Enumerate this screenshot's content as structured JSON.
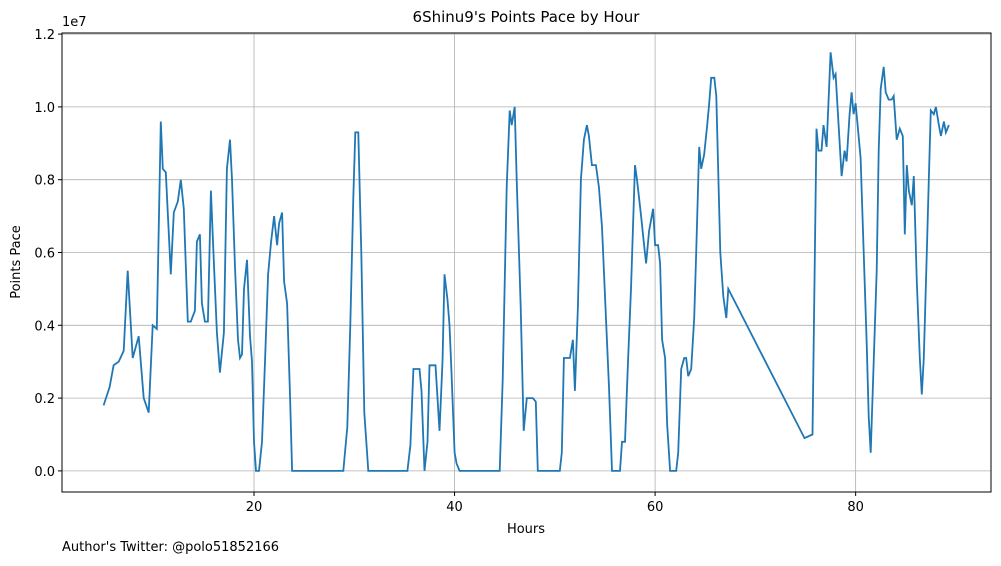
{
  "chart_data": {
    "type": "line",
    "title": "6Shinu9's Points Pace by Hour",
    "x_label": "Hours",
    "y_label": "Points Pace",
    "y_offset_label": "1e7",
    "footnote": "Author's Twitter: @polo51852166",
    "grid": true,
    "xlim": [
      0.85,
      93.5
    ],
    "ylim": [
      -0.058,
      1.203
    ],
    "xticks": [
      20,
      40,
      60,
      80
    ],
    "yticks": [
      {
        "value": 0,
        "label": "0.0"
      },
      {
        "value": 0.2,
        "label": "0.2"
      },
      {
        "value": 0.4,
        "label": "0.4"
      },
      {
        "value": 0.6,
        "label": "0.6"
      },
      {
        "value": 0.8,
        "label": "0.8"
      },
      {
        "value": 1.0,
        "label": "1.0"
      },
      {
        "value": 1.2,
        "label": "1.2"
      }
    ],
    "x": [
      5.0,
      5.6,
      6.0,
      6.5,
      7.0,
      7.4,
      7.9,
      8.5,
      9.0,
      9.5,
      9.9,
      10.3,
      10.7,
      10.9,
      11.2,
      11.7,
      12.0,
      12.4,
      12.7,
      13.0,
      13.4,
      13.7,
      14.1,
      14.3,
      14.6,
      14.8,
      15.1,
      15.4,
      15.7,
      16.0,
      16.3,
      16.6,
      17.0,
      17.3,
      17.6,
      17.8,
      18.1,
      18.4,
      18.6,
      18.8,
      19.0,
      19.3,
      19.6,
      19.8,
      20.0,
      20.2,
      20.5,
      20.8,
      21.1,
      21.4,
      21.7,
      22.0,
      22.3,
      22.5,
      22.8,
      23.0,
      23.3,
      23.6,
      23.8,
      28.9,
      29.3,
      29.6,
      29.9,
      30.1,
      30.4,
      30.7,
      31.0,
      31.4,
      35.3,
      35.6,
      35.9,
      36.5,
      36.7,
      37.0,
      37.3,
      37.5,
      38.1,
      38.5,
      38.8,
      39.0,
      39.3,
      39.5,
      39.7,
      40.0,
      40.2,
      40.5,
      44.5,
      44.8,
      45.2,
      45.5,
      45.7,
      46.0,
      46.2,
      46.6,
      46.9,
      47.2,
      47.8,
      48.1,
      48.3,
      50.5,
      50.7,
      50.9,
      51.5,
      51.8,
      52.0,
      52.3,
      52.6,
      52.9,
      53.2,
      53.4,
      53.7,
      54.1,
      54.4,
      54.7,
      55.0,
      55.4,
      55.7,
      56.5,
      56.7,
      57.0,
      57.3,
      57.6,
      58.0,
      58.2,
      58.6,
      58.9,
      59.1,
      59.4,
      59.8,
      60.0,
      60.3,
      60.5,
      60.7,
      61.0,
      61.2,
      61.5,
      62.1,
      62.3,
      62.6,
      62.9,
      63.1,
      63.3,
      63.6,
      63.9,
      64.1,
      64.4,
      64.6,
      64.9,
      65.2,
      65.4,
      65.6,
      65.9,
      66.1,
      66.5,
      66.8,
      67.1,
      67.3,
      74.9,
      75.7,
      76.1,
      76.3,
      76.6,
      76.8,
      77.1,
      77.3,
      77.5,
      77.8,
      78.0,
      78.3,
      78.6,
      78.9,
      79.1,
      79.4,
      79.6,
      79.8,
      80.0,
      80.2,
      80.5,
      80.8,
      81.1,
      81.3,
      81.5,
      81.8,
      82.1,
      82.3,
      82.5,
      82.8,
      83.0,
      83.3,
      83.6,
      83.8,
      84.1,
      84.4,
      84.7,
      84.9,
      85.1,
      85.3,
      85.6,
      85.8,
      86.1,
      86.4,
      86.6,
      86.8,
      87.1,
      87.3,
      87.5,
      87.8,
      88.0,
      88.3,
      88.5,
      88.8,
      89.0,
      89.3
    ],
    "series": [
      {
        "name": "Points Pace",
        "color": "#1f77b4",
        "values": [
          0.18,
          0.23,
          0.29,
          0.3,
          0.33,
          0.55,
          0.31,
          0.37,
          0.2,
          0.16,
          0.4,
          0.39,
          0.96,
          0.83,
          0.82,
          0.54,
          0.71,
          0.74,
          0.8,
          0.72,
          0.41,
          0.41,
          0.44,
          0.63,
          0.65,
          0.46,
          0.41,
          0.41,
          0.77,
          0.57,
          0.38,
          0.27,
          0.38,
          0.83,
          0.91,
          0.8,
          0.56,
          0.36,
          0.31,
          0.32,
          0.5,
          0.58,
          0.37,
          0.3,
          0.08,
          0,
          0,
          0.08,
          0.3,
          0.54,
          0.63,
          0.7,
          0.62,
          0.68,
          0.71,
          0.52,
          0.46,
          0.2,
          0,
          0,
          0.12,
          0.4,
          0.75,
          0.93,
          0.93,
          0.6,
          0.16,
          0,
          0,
          0.07,
          0.28,
          0.28,
          0.22,
          0,
          0.08,
          0.29,
          0.29,
          0.11,
          0.3,
          0.54,
          0.47,
          0.4,
          0.27,
          0.05,
          0.02,
          0,
          0,
          0.25,
          0.78,
          0.99,
          0.95,
          1.0,
          0.8,
          0.45,
          0.11,
          0.2,
          0.2,
          0.19,
          0,
          0,
          0.05,
          0.31,
          0.31,
          0.36,
          0.22,
          0.45,
          0.8,
          0.91,
          0.95,
          0.92,
          0.84,
          0.84,
          0.78,
          0.67,
          0.48,
          0.23,
          0,
          0,
          0.08,
          0.08,
          0.3,
          0.5,
          0.84,
          0.8,
          0.7,
          0.62,
          0.57,
          0.66,
          0.72,
          0.62,
          0.62,
          0.57,
          0.36,
          0.31,
          0.13,
          0,
          0,
          0.05,
          0.28,
          0.31,
          0.31,
          0.26,
          0.28,
          0.42,
          0.6,
          0.89,
          0.83,
          0.87,
          0.95,
          1.01,
          1.08,
          1.08,
          1.03,
          0.6,
          0.48,
          0.42,
          0.5,
          0.09,
          0.1,
          0.94,
          0.88,
          0.88,
          0.95,
          0.89,
          1.02,
          1.15,
          1.08,
          1.09,
          0.95,
          0.81,
          0.88,
          0.85,
          0.98,
          1.04,
          0.98,
          1.01,
          0.95,
          0.86,
          0.6,
          0.35,
          0.15,
          0.05,
          0.3,
          0.55,
          0.88,
          1.05,
          1.11,
          1.04,
          1.02,
          1.02,
          1.03,
          0.91,
          0.94,
          0.92,
          0.65,
          0.84,
          0.77,
          0.73,
          0.81,
          0.52,
          0.31,
          0.21,
          0.31,
          0.6,
          0.8,
          0.99,
          0.98,
          1.0,
          0.95,
          0.92,
          0.96,
          0.93,
          0.95
        ]
      }
    ]
  }
}
